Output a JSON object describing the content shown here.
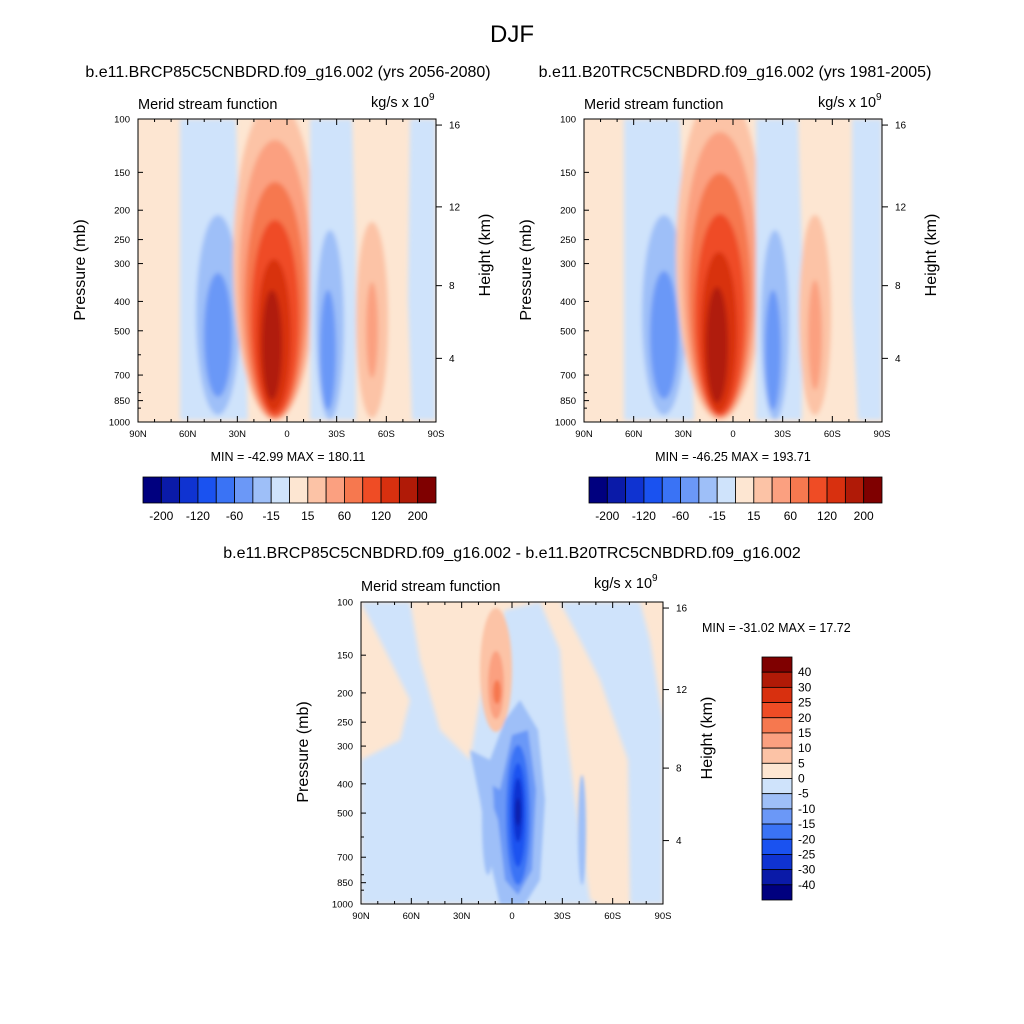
{
  "page_title": "DJF",
  "colors": {
    "panel_scale": [
      "#00007f",
      "#0a1aa8",
      "#0f33d1",
      "#1a52f0",
      "#3a73f5",
      "#6b98f7",
      "#9ebff8",
      "#cfe3fb",
      "#fde6d2",
      "#fcc3a6",
      "#fba080",
      "#f6784f",
      "#ef4c25",
      "#d8300f",
      "#b01a07",
      "#7f0000"
    ],
    "diff_scale": [
      "#00007f",
      "#0a1aa8",
      "#0f33d1",
      "#1a52f0",
      "#3a73f5",
      "#6b98f7",
      "#9ebff8",
      "#cfe3fb",
      "#fde6d2",
      "#fcc3a6",
      "#fba080",
      "#f6784f",
      "#ef4c25",
      "#d8300f",
      "#b01a07",
      "#7f0000"
    ]
  },
  "panels": [
    {
      "title": "b.e11.BRCP85C5CNBDRD.f09_g16.002 (yrs 2056-2080)",
      "left_label": "Merid stream function",
      "right_label": "kg/s x 10",
      "right_label_exp": "9",
      "ylabel": "Pressure (mb)",
      "y2label": "Height (km)",
      "minmax": "MIN = -42.99  MAX = 180.11",
      "colorbar_labels": [
        "-200",
        "-120",
        "-60",
        "-15",
        "15",
        "60",
        "120",
        "200"
      ]
    },
    {
      "title": "b.e11.B20TRC5CNBDRD.f09_g16.002 (yrs 1981-2005)",
      "left_label": "Merid stream function",
      "right_label": "kg/s x 10",
      "right_label_exp": "9",
      "ylabel": "Pressure (mb)",
      "y2label": "Height (km)",
      "minmax": "MIN = -46.25  MAX = 193.71",
      "colorbar_labels": [
        "-200",
        "-120",
        "-60",
        "-15",
        "15",
        "60",
        "120",
        "200"
      ]
    },
    {
      "title": "b.e11.BRCP85C5CNBDRD.f09_g16.002 - b.e11.B20TRC5CNBDRD.f09_g16.002",
      "left_label": "Merid stream function",
      "right_label": "kg/s x 10",
      "right_label_exp": "9",
      "ylabel": "Pressure (mb)",
      "y2label": "Height (km)",
      "minmax": "MIN = -31.02  MAX =  17.72",
      "colorbar_labels": [
        "40",
        "30",
        "25",
        "20",
        "15",
        "10",
        "5",
        "0",
        "-5",
        "-10",
        "-15",
        "-20",
        "-25",
        "-30",
        "-40"
      ]
    }
  ],
  "chart_data": [
    {
      "type": "heatmap",
      "title": "b.e11.BRCP85C5CNBDRD.f09_g16.002 (yrs 2056-2080)",
      "xlabel": "",
      "ylabel": "Pressure (mb)",
      "y2label": "Height (km)",
      "x_ticks": [
        "90N",
        "60N",
        "30N",
        "0",
        "30S",
        "60S",
        "90S"
      ],
      "y_ticks": [
        "100",
        "150",
        "200",
        "250",
        "300",
        "400",
        "500",
        "700",
        "850",
        "1000"
      ],
      "y2_ticks": [
        "16",
        "12",
        "8",
        "4"
      ],
      "y_scale": "log",
      "min": -42.99,
      "max": 180.11,
      "levels": [
        -200,
        -160,
        -120,
        -80,
        -60,
        -40,
        -15,
        0,
        15,
        40,
        60,
        80,
        120,
        160,
        200
      ],
      "cells": [
        {
          "lat": 40,
          "p_top": 220,
          "p_bot": 880,
          "value": -40
        },
        {
          "lat": 12,
          "p_top": 120,
          "p_bot": 920,
          "value": 180
        },
        {
          "lat": -22,
          "p_top": 230,
          "p_bot": 900,
          "value": -40
        },
        {
          "lat": -48,
          "p_top": 230,
          "p_bot": 880,
          "value": 30
        }
      ]
    },
    {
      "type": "heatmap",
      "title": "b.e11.B20TRC5CNBDRD.f09_g16.002 (yrs 1981-2005)",
      "xlabel": "",
      "ylabel": "Pressure (mb)",
      "y2label": "Height (km)",
      "x_ticks": [
        "90N",
        "60N",
        "30N",
        "0",
        "30S",
        "60S",
        "90S"
      ],
      "y_ticks": [
        "100",
        "150",
        "200",
        "250",
        "300",
        "400",
        "500",
        "700",
        "850",
        "1000"
      ],
      "y2_ticks": [
        "16",
        "12",
        "8",
        "4"
      ],
      "y_scale": "log",
      "min": -46.25,
      "max": 193.71,
      "levels": [
        -200,
        -160,
        -120,
        -80,
        -60,
        -40,
        -15,
        0,
        15,
        40,
        60,
        80,
        120,
        160,
        200
      ],
      "cells": [
        {
          "lat": 40,
          "p_top": 220,
          "p_bot": 880,
          "value": -45
        },
        {
          "lat": 12,
          "p_top": 120,
          "p_bot": 920,
          "value": 193
        },
        {
          "lat": -22,
          "p_top": 230,
          "p_bot": 900,
          "value": -40
        },
        {
          "lat": -48,
          "p_top": 230,
          "p_bot": 880,
          "value": 35
        }
      ]
    },
    {
      "type": "heatmap",
      "title": "b.e11.BRCP85C5CNBDRD.f09_g16.002 - b.e11.B20TRC5CNBDRD.f09_g16.002",
      "xlabel": "",
      "ylabel": "Pressure (mb)",
      "y2label": "Height (km)",
      "x_ticks": [
        "90N",
        "60N",
        "30N",
        "0",
        "30S",
        "60S",
        "90S"
      ],
      "y_ticks": [
        "100",
        "150",
        "200",
        "250",
        "300",
        "400",
        "500",
        "700",
        "850",
        "1000"
      ],
      "y2_ticks": [
        "16",
        "12",
        "8",
        "4"
      ],
      "y_scale": "log",
      "min": -31.02,
      "max": 17.72,
      "levels": [
        -40,
        -30,
        -25,
        -20,
        -15,
        -10,
        -5,
        0,
        5,
        10,
        15,
        20,
        25,
        30,
        40
      ],
      "cells": [
        {
          "lat": 8,
          "p_top": 120,
          "p_bot": 260,
          "value": 17
        },
        {
          "lat": -3,
          "p_top": 300,
          "p_bot": 950,
          "value": -31
        },
        {
          "lat": 15,
          "p_top": 330,
          "p_bot": 820,
          "value": -10
        }
      ]
    }
  ]
}
